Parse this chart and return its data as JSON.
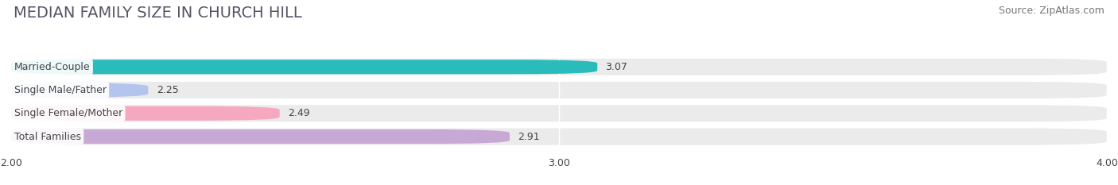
{
  "title": "MEDIAN FAMILY SIZE IN CHURCH HILL",
  "source": "Source: ZipAtlas.com",
  "categories": [
    "Married-Couple",
    "Single Male/Father",
    "Single Female/Mother",
    "Total Families"
  ],
  "values": [
    3.07,
    2.25,
    2.49,
    2.91
  ],
  "bar_colors": [
    "#29bcba",
    "#b3c4ee",
    "#f5a8be",
    "#c8a8d5"
  ],
  "xlim": [
    2.0,
    4.0
  ],
  "xticks": [
    2.0,
    3.0,
    4.0
  ],
  "xtick_labels": [
    "2.00",
    "3.00",
    "4.00"
  ],
  "background_color": "#ffffff",
  "bar_bg_color": "#ebebeb",
  "title_fontsize": 14,
  "source_fontsize": 9,
  "label_fontsize": 9,
  "value_fontsize": 9,
  "title_color": "#555566",
  "text_color": "#444444"
}
